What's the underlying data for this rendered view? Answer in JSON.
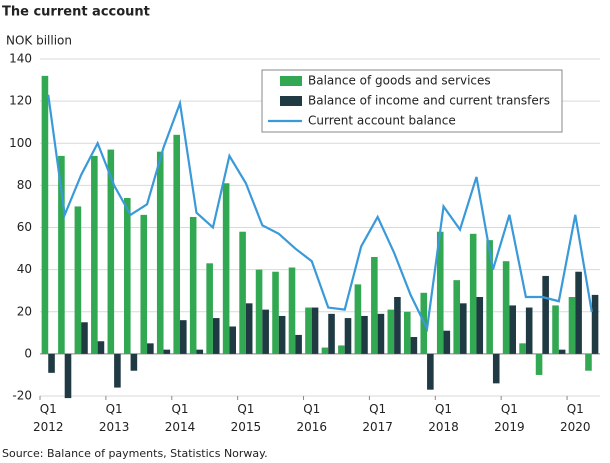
{
  "chart_data": {
    "type": "bar",
    "title": "The current account",
    "y_label": "NOK billion",
    "source": "Source: Balance of payments, Statistics Norway.",
    "categories": [
      "Q1 2012",
      null,
      null,
      null,
      "Q1 2013",
      null,
      null,
      null,
      "Q1 2014",
      null,
      null,
      null,
      "Q1 2015",
      null,
      null,
      null,
      "Q1 2016",
      null,
      null,
      null,
      "Q1 2017",
      null,
      null,
      null,
      "Q1 2018",
      null,
      null,
      null,
      "Q1 2019",
      null,
      null,
      null,
      "Q1 2020",
      null
    ],
    "series": [
      {
        "name": "Balance of goods and services",
        "color": "#33a852",
        "type": "bar",
        "values": [
          132,
          94,
          70,
          94,
          97,
          74,
          66,
          96,
          104,
          65,
          43,
          81,
          58,
          40,
          39,
          41,
          22,
          3,
          4,
          33,
          46,
          21,
          20,
          29,
          58,
          35,
          57,
          54,
          44,
          5,
          -10,
          23,
          27,
          -8
        ]
      },
      {
        "name": "Balance of income and current transfers",
        "color": "#203a44",
        "type": "bar",
        "values": [
          -9,
          -21,
          15,
          6,
          -16,
          -8,
          5,
          2,
          16,
          2,
          17,
          13,
          24,
          21,
          18,
          9,
          22,
          19,
          17,
          18,
          19,
          27,
          8,
          -17,
          11,
          24,
          27,
          -14,
          23,
          22,
          37,
          2,
          39,
          28
        ]
      },
      {
        "name": "Current account balance",
        "color": "#3a9ad9",
        "type": "line",
        "values": [
          123,
          66,
          85,
          100,
          80,
          66,
          71,
          98,
          119,
          67,
          60,
          94,
          81,
          61,
          57,
          50,
          44,
          22,
          21,
          51,
          65,
          48,
          28,
          12,
          70,
          59,
          84,
          40,
          66,
          27,
          27,
          25,
          66,
          20
        ]
      }
    ],
    "ylim": [
      -20,
      140
    ],
    "yticks": [
      -20,
      0,
      20,
      40,
      60,
      80,
      100,
      120,
      140
    ],
    "grid": true,
    "legend": "top-right"
  }
}
